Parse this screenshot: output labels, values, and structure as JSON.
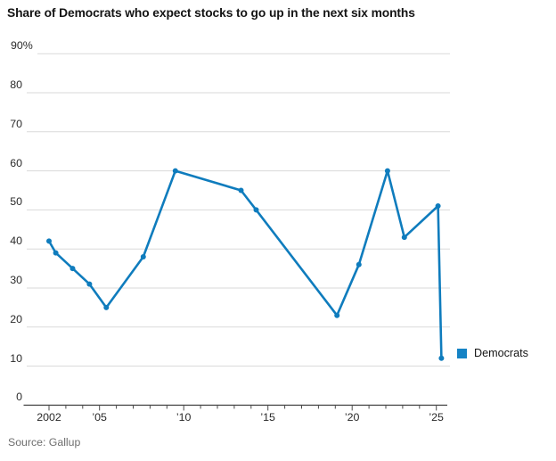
{
  "header": {
    "title": "Share of Democrats who expect stocks to go up in the next six months"
  },
  "source": {
    "label": "Source: Gallup"
  },
  "legend": {
    "label": "Democrats"
  },
  "colors": {
    "line": "#0f7cbd",
    "marker": "#0f7cbd",
    "legend_swatch": "#1583c5",
    "gridline": "#dadada",
    "axis": "#4a4a4a",
    "axis_text": "#2a2a2a",
    "title_text": "#141414",
    "source_text": "#6e6e6e"
  },
  "chart_data": {
    "type": "line",
    "title": "Share of Democrats who expect stocks to go up in the next six months",
    "xlabel": "",
    "ylabel": "",
    "grid": true,
    "legend_position": "right-of-line-end",
    "x_axis": {
      "range_years": [
        2002,
        2025
      ],
      "minor_tick_every": 1,
      "labels": [
        {
          "text": "2002",
          "year": 2002
        },
        {
          "text": "’05",
          "year": 2005
        },
        {
          "text": "’10",
          "year": 2010
        },
        {
          "text": "’15",
          "year": 2015
        },
        {
          "text": "’20",
          "year": 2020
        },
        {
          "text": "’25",
          "year": 2025
        }
      ]
    },
    "y_axis": {
      "range": [
        0,
        90
      ],
      "tick_step": 10,
      "labels": [
        {
          "text": "90%",
          "value": 90
        },
        {
          "text": "80",
          "value": 80
        },
        {
          "text": "70",
          "value": 70
        },
        {
          "text": "60",
          "value": 60
        },
        {
          "text": "50",
          "value": 50
        },
        {
          "text": "40",
          "value": 40
        },
        {
          "text": "30",
          "value": 30
        },
        {
          "text": "20",
          "value": 20
        },
        {
          "text": "10",
          "value": 10
        },
        {
          "text": "0",
          "value": 0
        }
      ]
    },
    "series": [
      {
        "name": "Democrats",
        "points": [
          {
            "x": 2002.0,
            "y": 42
          },
          {
            "x": 2002.4,
            "y": 39
          },
          {
            "x": 2003.4,
            "y": 35
          },
          {
            "x": 2004.4,
            "y": 31
          },
          {
            "x": 2005.4,
            "y": 25
          },
          {
            "x": 2007.6,
            "y": 38
          },
          {
            "x": 2009.5,
            "y": 60
          },
          {
            "x": 2013.4,
            "y": 55
          },
          {
            "x": 2014.3,
            "y": 50
          },
          {
            "x": 2019.1,
            "y": 23
          },
          {
            "x": 2020.4,
            "y": 36
          },
          {
            "x": 2022.1,
            "y": 60
          },
          {
            "x": 2023.1,
            "y": 43
          },
          {
            "x": 2025.1,
            "y": 51
          },
          {
            "x": 2025.3,
            "y": 12
          }
        ]
      }
    ]
  }
}
